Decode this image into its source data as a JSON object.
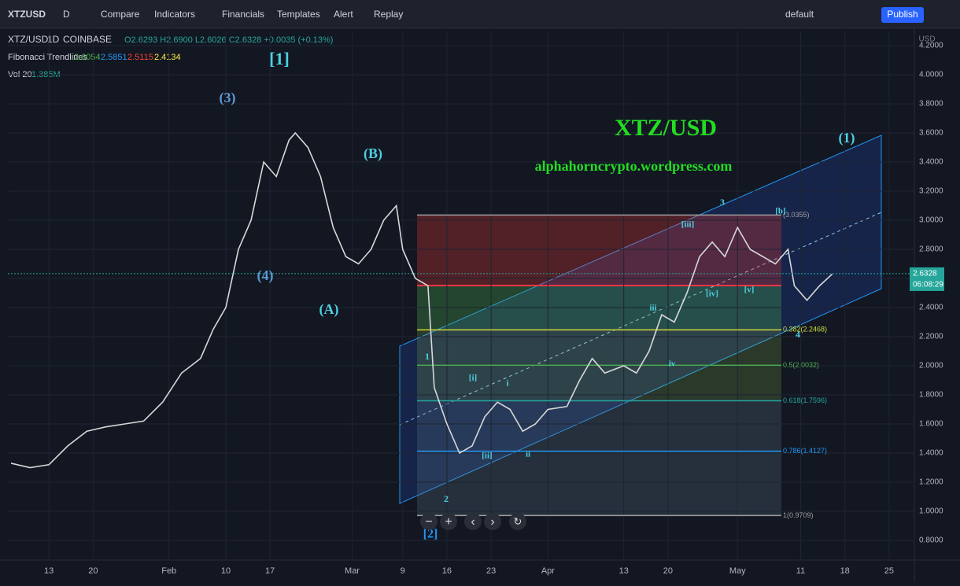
{
  "toolbar": {
    "symbol": "XTZUSD",
    "interval": "D",
    "items": [
      "Compare",
      "Indicators",
      "Financials",
      "Templates",
      "Alert",
      "Replay"
    ],
    "layout": "default",
    "publish": "Publish"
  },
  "legend": {
    "pair": "XTZ/USD",
    "interval": "1D",
    "exchange": "COINBASE",
    "ohlc": "O2.6293 H2.6900 L2.6026 C2.6328 +0.0035 (+0.13%)",
    "indicator": "Fibonacci Trendlines",
    "indicator_values": [
      {
        "text": "2.6054",
        "color": "#4caf50"
      },
      {
        "text": "2.5851",
        "color": "#2196f3"
      },
      {
        "text": "2.5115",
        "color": "#f44336"
      },
      {
        "text": "2.4134",
        "color": "#ffeb3b"
      }
    ],
    "volume": "Vol 20",
    "volume_value": "1.385M",
    "currency": "USD"
  },
  "chart_data": {
    "type": "line",
    "color": "#d8d8d8",
    "x": [
      6,
      9,
      12,
      15,
      18,
      21,
      24,
      27,
      30,
      33,
      36,
      38,
      40,
      42,
      44,
      46,
      48,
      50,
      51,
      53,
      55,
      57,
      59,
      61,
      63,
      65,
      67,
      68,
      70,
      72,
      73,
      75,
      77,
      79,
      81,
      83,
      85,
      87,
      89,
      91,
      94,
      96,
      98,
      100,
      103,
      105,
      107,
      109,
      111,
      113,
      115,
      117,
      119,
      121,
      123,
      125,
      127,
      129,
      130,
      132,
      134,
      136
    ],
    "values": [
      1.33,
      1.3,
      1.32,
      1.45,
      1.55,
      1.58,
      1.6,
      1.62,
      1.75,
      1.95,
      2.05,
      2.25,
      2.4,
      2.8,
      3.0,
      3.4,
      3.3,
      3.55,
      3.6,
      3.5,
      3.3,
      2.95,
      2.75,
      2.7,
      2.8,
      3.0,
      3.1,
      2.8,
      2.6,
      2.55,
      1.85,
      1.6,
      1.4,
      1.45,
      1.65,
      1.75,
      1.7,
      1.55,
      1.6,
      1.7,
      1.72,
      1.9,
      2.05,
      1.95,
      2.0,
      1.95,
      2.1,
      2.35,
      2.3,
      2.5,
      2.75,
      2.85,
      2.75,
      2.95,
      2.8,
      2.75,
      2.7,
      2.8,
      2.55,
      2.45,
      2.55,
      2.63
    ],
    "xlim": [
      5.5,
      149
    ],
    "xticks": [
      {
        "value": 12,
        "label": "13"
      },
      {
        "value": 19,
        "label": "20"
      },
      {
        "value": 31,
        "label": "Feb"
      },
      {
        "value": 40,
        "label": "10"
      },
      {
        "value": 47,
        "label": "17"
      },
      {
        "value": 60,
        "label": "Mar"
      },
      {
        "value": 68,
        "label": "9"
      },
      {
        "value": 75,
        "label": "16"
      },
      {
        "value": 82,
        "label": "23"
      },
      {
        "value": 91,
        "label": "Apr"
      },
      {
        "value": 103,
        "label": "13"
      },
      {
        "value": 110,
        "label": "20"
      },
      {
        "value": 121,
        "label": "May"
      },
      {
        "value": 131,
        "label": "11"
      },
      {
        "value": 138,
        "label": "18"
      },
      {
        "value": 145,
        "label": "25"
      }
    ],
    "ylim": [
      0.665,
      4.297
    ],
    "yticks": [
      {
        "value": 0.8,
        "label": "0.8000"
      },
      {
        "value": 1.0,
        "label": "1.0000"
      },
      {
        "value": 1.2,
        "label": "1.2000"
      },
      {
        "value": 1.4,
        "label": "1.4000"
      },
      {
        "value": 1.6,
        "label": "1.6000"
      },
      {
        "value": 1.8,
        "label": "1.8000"
      },
      {
        "value": 2.0,
        "label": "2.0000"
      },
      {
        "value": 2.2,
        "label": "2.2000"
      },
      {
        "value": 2.4,
        "label": "2.4000"
      },
      {
        "value": 2.6,
        "label": "2.6000"
      },
      {
        "value": 2.8,
        "label": "2.8000"
      },
      {
        "value": 3.0,
        "label": "3.0000"
      },
      {
        "value": 3.2,
        "label": "3.2000"
      },
      {
        "value": 3.4,
        "label": "3.4000"
      },
      {
        "value": 3.6,
        "label": "3.6000"
      },
      {
        "value": 3.8,
        "label": "3.8000"
      },
      {
        "value": 4.0,
        "label": "4.0000"
      },
      {
        "value": 4.2,
        "label": "4.2000"
      }
    ],
    "last_price": {
      "value": 2.6328,
      "label": "2.6328"
    },
    "countdown": "06:08:29",
    "fib_levels": [
      {
        "value": 3.0355,
        "label": "(3.0355)",
        "color": "#9e9e9e"
      },
      {
        "value": 2.2468,
        "label": "0.382(2.2468)",
        "color": "#cddc39"
      },
      {
        "value": 2.0032,
        "label": "0.5(2.0032)",
        "color": "#4caf50"
      },
      {
        "value": 1.7596,
        "label": "0.618(1.7596)",
        "color": "#26a69a"
      },
      {
        "value": 1.4127,
        "label": "0.786(1.4127)",
        "color": "#2196f3"
      },
      {
        "value": 0.9709,
        "label": "1(0.9709)",
        "color": "#9e9e9e"
      }
    ],
    "annotations": [
      "[1]",
      "(3)",
      "(B)",
      "(4)",
      "(A)",
      "(1)",
      "XTZ/USD",
      "alphahorncrypto.wordpress.com",
      "1",
      "2",
      "[2]",
      "[i]",
      "[ii]",
      "i",
      "ii",
      "iii",
      "iv",
      "3",
      "[iii]",
      "[iv]",
      "[v]",
      "[b]",
      "4"
    ]
  }
}
